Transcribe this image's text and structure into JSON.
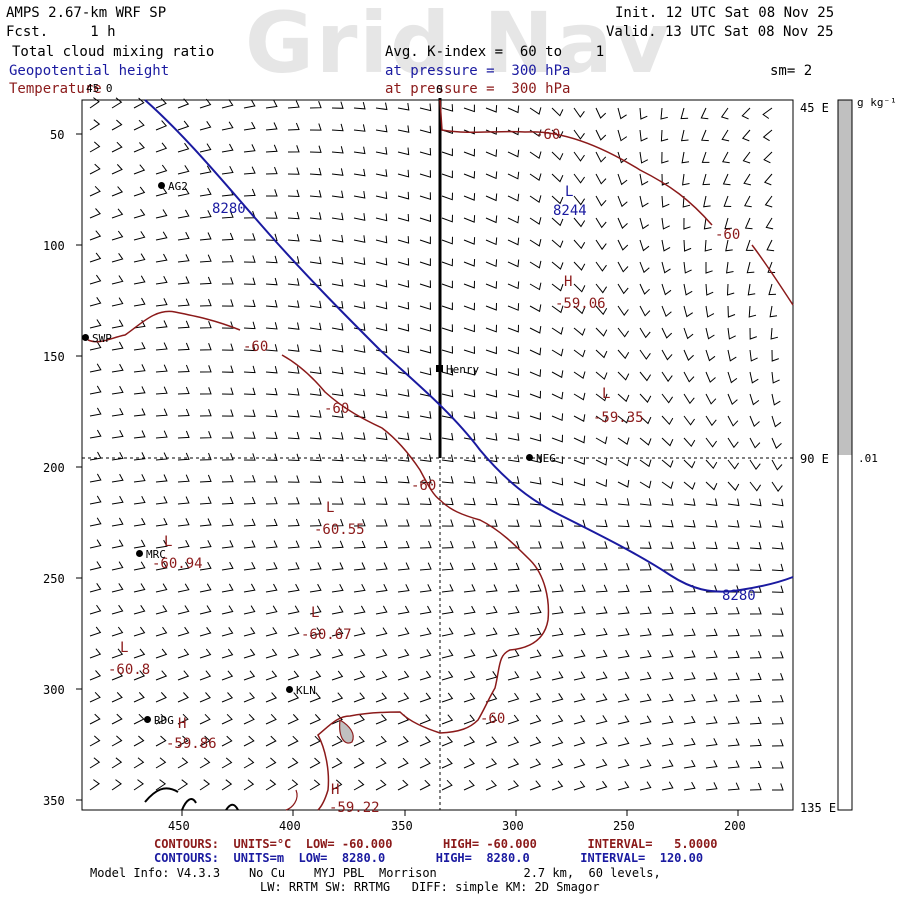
{
  "watermark": "Grid Nav",
  "header": {
    "model": "AMPS 2.67-km WRF SP",
    "fcst": "Fcst.     1 h",
    "init": "Init. 12 UTC Sat 08 Nov 25",
    "valid": "Valid. 13 UTC Sat 08 Nov 25",
    "field1": "Total cloud mixing ratio",
    "field2": "Geopotential height",
    "field3": "Temperature",
    "avg": "Avg. K-index =  60 to    1",
    "pressure2": "at pressure =  300 hPa",
    "pressure3": "at pressure =  300 hPa",
    "smooth": "sm= 2"
  },
  "colorbar": {
    "units": "g kg⁻¹",
    "value": ".01",
    "top_label": "45 E",
    "mid_label": "90 E",
    "bottom_label": "135 E",
    "fill": "#c0c0c0"
  },
  "axes": {
    "x_ticks": [
      "450",
      "400",
      "350",
      "300",
      "250",
      "200"
    ],
    "y_ticks": [
      "50",
      "100",
      "150",
      "200",
      "250",
      "300",
      "350"
    ],
    "corner_tl": "45 0",
    "top_tick": "0"
  },
  "stations": [
    {
      "id": "AG2",
      "label": "AG2"
    },
    {
      "id": "SWP",
      "label": "SWP"
    },
    {
      "id": "henry",
      "label": "Henry"
    },
    {
      "id": "NEG",
      "label": "NEG"
    },
    {
      "id": "MRC",
      "label": "MRC"
    },
    {
      "id": "KLN",
      "label": "KLN"
    },
    {
      "id": "RDG",
      "label": "RDG"
    }
  ],
  "contour_labels": {
    "height_nw": "8280",
    "height_se": "8280",
    "temp_1": "-60",
    "temp_2": "-60",
    "temp_3": "-60",
    "temp_4": "-60",
    "temp_5": "-60",
    "temp_6": "-60"
  },
  "extrema": [
    {
      "sym": "L",
      "val": "8244",
      "color": "blue"
    },
    {
      "sym": "H",
      "val": "-59.06",
      "color": "red"
    },
    {
      "sym": "L",
      "val": "-59.35",
      "color": "red"
    },
    {
      "sym": "L",
      "val": "-60.55",
      "color": "red"
    },
    {
      "sym": "L",
      "val": "-60.94",
      "color": "red"
    },
    {
      "sym": "L",
      "val": "-60.67",
      "color": "red"
    },
    {
      "sym": "L",
      "val": "-60.8",
      "color": "red"
    },
    {
      "sym": "H",
      "val": "-59.86",
      "color": "red"
    },
    {
      "sym": "H",
      "val": "-59.22",
      "color": "red"
    }
  ],
  "footer": {
    "temp_contours": "CONTOURS:  UNITS=°C  LOW= -60.000       HIGH= -60.000       INTERVAL=   5.0000",
    "hgt_contours": "CONTOURS:  UNITS=m  LOW=  8280.0       HIGH=  8280.0       INTERVAL=  120.00",
    "model_info": "Model Info: V4.3.3    No Cu    MYJ PBL  Morrison            2.7 km,  60 levels,",
    "physics": "LW: RRTM SW: RRTMG   DIFF: simple KM: 2D Smagor"
  },
  "colors": {
    "height": "#1a1aa0",
    "temperature": "#8b1a1a",
    "barbs": "#000000"
  }
}
